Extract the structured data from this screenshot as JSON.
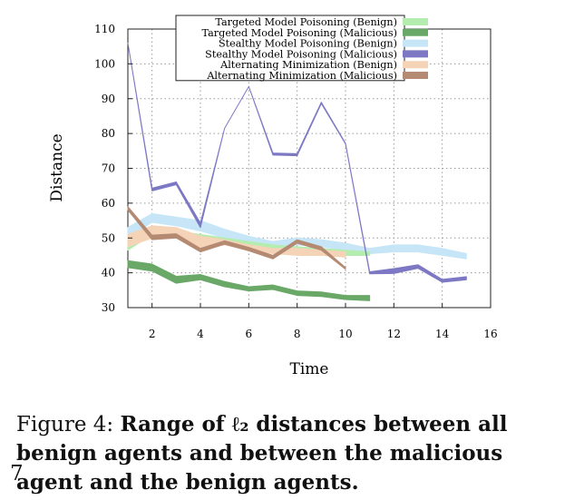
{
  "chart_data": {
    "type": "line",
    "xlabel": "Time",
    "ylabel": "Distance",
    "xlim": [
      1,
      16
    ],
    "ylim": [
      30,
      110
    ],
    "xticks": [
      2,
      4,
      6,
      8,
      10,
      12,
      14,
      16
    ],
    "yticks": [
      30,
      40,
      50,
      60,
      70,
      80,
      90,
      100,
      110
    ],
    "grid": true,
    "legend_position": "top-right",
    "series": [
      {
        "name": "Targeted Model Poisoning (Benign)",
        "color": "#b5ecb0",
        "x": [
          1,
          2,
          3,
          4,
          5,
          6,
          7,
          8,
          9,
          10,
          11
        ],
        "low": [
          46.5,
          51,
          50,
          49.5,
          48,
          47,
          46.5,
          46,
          45.5,
          45,
          45
        ],
        "high": [
          49,
          53,
          52,
          51,
          50,
          49,
          48,
          47.5,
          47,
          46.5,
          46
        ]
      },
      {
        "name": "Targeted Model Poisoning (Malicious)",
        "color": "#6aa868",
        "x": [
          1,
          2,
          3,
          4,
          5,
          6,
          7,
          8,
          9,
          10,
          11
        ],
        "low": [
          41.5,
          40.5,
          37,
          38,
          36,
          34.8,
          35.2,
          33.5,
          33.2,
          32.3,
          32
        ],
        "high": [
          43.5,
          42.5,
          39,
          39.5,
          37.5,
          36,
          36.5,
          34.8,
          34.5,
          33.5,
          33.5
        ]
      },
      {
        "name": "Stealthy Model Poisoning (Benign)",
        "color": "#c6e6f8",
        "x": [
          1,
          2,
          3,
          4,
          5,
          6,
          7,
          8,
          9,
          10,
          11,
          12,
          13,
          14,
          15
        ],
        "low": [
          50,
          54.5,
          53.5,
          52,
          50,
          48.5,
          47,
          48,
          47.5,
          46.5,
          45.5,
          46,
          46,
          45,
          44
        ],
        "high": [
          53,
          57,
          56,
          55,
          52.5,
          50.5,
          49,
          50,
          49.5,
          48.5,
          47,
          48,
          48,
          47,
          45.5
        ]
      },
      {
        "name": "Stealthy Model Poisoning (Malicious)",
        "color": "#7d78c4",
        "x": [
          1,
          2,
          3,
          4,
          5,
          6,
          7,
          8,
          9,
          10,
          11,
          12,
          13,
          14,
          15
        ],
        "low": [
          106,
          63.5,
          65.3,
          53,
          81.5,
          93.5,
          73.8,
          73.6,
          88.6,
          77,
          39.7,
          39.8,
          41.3,
          37.3,
          38
        ],
        "high": [
          106,
          64.3,
          66.1,
          54.3,
          81.5,
          93.5,
          74.4,
          74.2,
          89,
          77.2,
          40.3,
          41.2,
          42.3,
          38.1,
          38.9
        ]
      },
      {
        "name": "Alternating Minimization (Benign)",
        "color": "#f5d3b6",
        "x": [
          1,
          2,
          3,
          4,
          5,
          6,
          7,
          8,
          9,
          10
        ],
        "low": [
          47.5,
          50,
          50,
          47,
          48,
          46.5,
          45.5,
          45,
          45,
          44.5
        ],
        "high": [
          51,
          53.5,
          53,
          50.5,
          49.5,
          48,
          47,
          47,
          46.5,
          46
        ]
      },
      {
        "name": "Alternating Minimization (Malicious)",
        "color": "#b48a72",
        "x": [
          1,
          2,
          3,
          4,
          5,
          6,
          7,
          8,
          9,
          10
        ],
        "low": [
          58,
          49.5,
          50,
          46,
          48.2,
          46.3,
          44,
          48.5,
          46.5,
          41
        ],
        "high": [
          59,
          50.8,
          51.2,
          47,
          49.2,
          47.3,
          45,
          49.5,
          47.5,
          41.5
        ]
      }
    ]
  },
  "caption": {
    "label": "Figure 4:",
    "text": "Range of ℓ₂ distances between all benign agents and between the malicious agent and the benign agents."
  },
  "page_number": "7"
}
